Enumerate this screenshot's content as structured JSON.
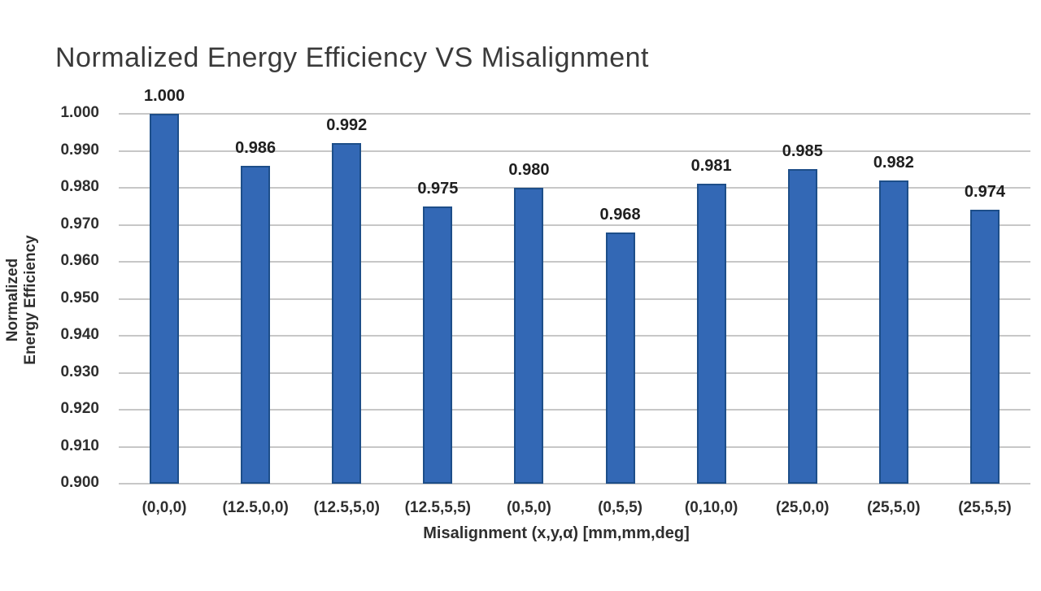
{
  "chart_data": {
    "type": "bar",
    "title": "Normalized Energy Efficiency VS Misalignment",
    "xlabel": "Misalignment (x,y,α) [mm,mm,deg]",
    "ylabel": "Normalized Energy Efficiency",
    "ylabel_lines": [
      "Normalized",
      "Energy Efficiency"
    ],
    "categories": [
      "(0,0,0)",
      "(12.5,0,0)",
      "(12.5,5,0)",
      "(12.5,5,5)",
      "(0,5,0)",
      "(0,5,5)",
      "(0,10,0)",
      "(25,0,0)",
      "(25,5,0)",
      "(25,5,5)"
    ],
    "values": [
      1.0,
      0.986,
      0.992,
      0.975,
      0.98,
      0.968,
      0.981,
      0.985,
      0.982,
      0.974
    ],
    "data_labels": [
      "1.000",
      "0.986",
      "0.992",
      "0.975",
      "0.980",
      "0.968",
      "0.981",
      "0.985",
      "0.982",
      "0.974"
    ],
    "yticks": [
      "1.000",
      "0.990",
      "0.980",
      "0.970",
      "0.960",
      "0.950",
      "0.940",
      "0.930",
      "0.920",
      "0.910",
      "0.900"
    ],
    "ylim": [
      0.9,
      1.0
    ],
    "grid": true,
    "legend": "none",
    "colors": {
      "bar_fill": "#3368b5",
      "bar_border": "#1d4e89",
      "gridline": "#c7c7c7",
      "axis_text": "#2f2f2f",
      "title_text": "#3a3a3a",
      "background": "#ffffff"
    }
  }
}
